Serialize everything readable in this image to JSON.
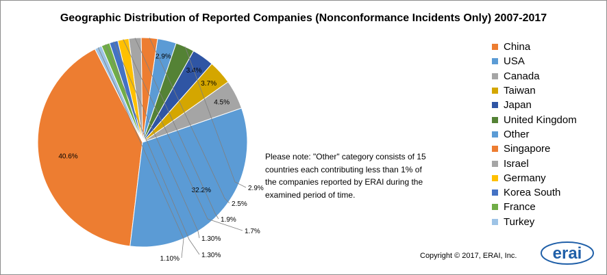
{
  "chart_data": {
    "type": "pie",
    "title": "Geographic Distribution of Reported Companies (Nonconformance Incidents Only) 2007-2017",
    "labels": [
      "China",
      "USA",
      "Canada",
      "Taiwan",
      "Japan",
      "United Kingdom",
      "Other",
      "Singapore",
      "Israel",
      "Germany",
      "Korea South",
      "France",
      "Turkey"
    ],
    "values": [
      40.6,
      32.2,
      4.5,
      3.7,
      3.4,
      2.9,
      2.9,
      2.5,
      1.9,
      1.7,
      1.3,
      1.3,
      1.1
    ],
    "value_labels": [
      "40.6%",
      "32.2%",
      "4.5%",
      "3.7%",
      "3.4%",
      "2.9%",
      "2.9%",
      "2.5%",
      "1.9%",
      "1.7%",
      "1.30%",
      "1.30%",
      "1.10%"
    ],
    "colors": [
      "#ED7D31",
      "#5B9BD5",
      "#A5A5A5",
      "#D4A600",
      "#2F55A4",
      "#548235",
      "#5B9BD5",
      "#ED7D31",
      "#A5A5A5",
      "#FFC000",
      "#4472C4",
      "#70AD47",
      "#9DC3E6"
    ],
    "legend_position": "right"
  },
  "note": "Please note: \"Other\" category consists of 15 countries each contributing less than 1% of the companies reported by ERAI during the examined period of time.",
  "copyright": "Copyright © 2017, ERAI, Inc.",
  "logo_text": "erai",
  "logo_color": "#1f5fa8"
}
